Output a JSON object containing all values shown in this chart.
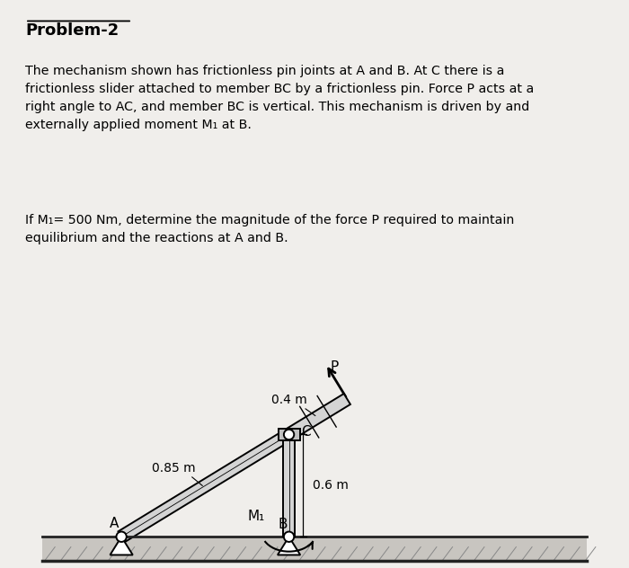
{
  "title": "Problem-2",
  "bg_color": "#f0eeeb",
  "text_color": "#000000",
  "paragraph1": "The mechanism shown has frictionless pin joints at A and B. At C there is a\nfrictionless slider attached to member BC by a frictionless pin. Force P acts at a\nright angle to AC, and member BC is vertical. This mechanism is driven by and\nexternally applied moment M₁ at B.",
  "paragraph2": "If M₁= 500 Nm, determine the magnitude of the force P required to maintain\nequilibrium and the reactions at A and B.",
  "label_A": "A",
  "label_B": "B",
  "label_C": "C",
  "label_P": "P",
  "label_M1": "M₁",
  "label_085": "0.85 m",
  "label_04": "0.4 m",
  "label_06": "0.6 m"
}
